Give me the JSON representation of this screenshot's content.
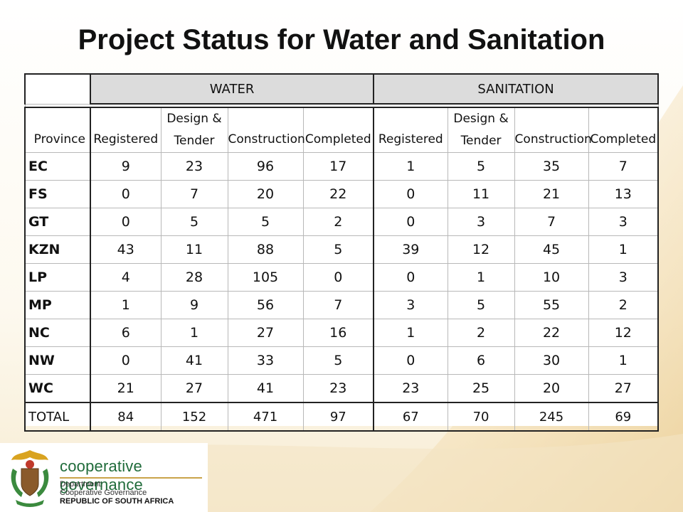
{
  "title": "Project Status for Water and Sanitation",
  "table": {
    "groups": [
      "WATER",
      "SANITATION"
    ],
    "province_header": "Province",
    "columns": [
      "Registered",
      "Design &",
      "Tender",
      "Construction",
      "Completed"
    ],
    "rows": [
      {
        "province": "EC",
        "water": [
          "9",
          "23",
          "96",
          "17"
        ],
        "sanitation": [
          "1",
          "5",
          "35",
          "7"
        ]
      },
      {
        "province": "FS",
        "water": [
          "0",
          "7",
          "20",
          "22"
        ],
        "sanitation": [
          "0",
          "11",
          "21",
          "13"
        ]
      },
      {
        "province": "GT",
        "water": [
          "0",
          "5",
          "5",
          "2"
        ],
        "sanitation": [
          "0",
          "3",
          "7",
          "3"
        ]
      },
      {
        "province": "KZN",
        "water": [
          "43",
          "11",
          "88",
          "5"
        ],
        "sanitation": [
          "39",
          "12",
          "45",
          "1"
        ]
      },
      {
        "province": "LP",
        "water": [
          "4",
          "28",
          "105",
          "0"
        ],
        "sanitation": [
          "0",
          "1",
          "10",
          "3"
        ]
      },
      {
        "province": "MP",
        "water": [
          "1",
          "9",
          "56",
          "7"
        ],
        "sanitation": [
          "3",
          "5",
          "55",
          "2"
        ]
      },
      {
        "province": "NC",
        "water": [
          "6",
          "1",
          "27",
          "16"
        ],
        "sanitation": [
          "1",
          "2",
          "22",
          "12"
        ]
      },
      {
        "province": "NW",
        "water": [
          "0",
          "41",
          "33",
          "5"
        ],
        "sanitation": [
          "0",
          "6",
          "30",
          "1"
        ]
      },
      {
        "province": "WC",
        "water": [
          "21",
          "27",
          "41",
          "23"
        ],
        "sanitation": [
          "23",
          "25",
          "20",
          "27"
        ]
      }
    ],
    "total": {
      "province": "TOTAL",
      "water": [
        "84",
        "152",
        "471",
        "97"
      ],
      "sanitation": [
        "67",
        "70",
        "245",
        "69"
      ]
    }
  },
  "footer": {
    "brand": "cooperative governance",
    "dept_line1": "Department:",
    "dept_line2": "Cooperative Governance",
    "dept_line3": "REPUBLIC OF SOUTH AFRICA"
  },
  "colors": {
    "brand_green": "#1f6b3a",
    "brand_gold": "#c9a34a",
    "header_gray": "#dcdcdc"
  }
}
